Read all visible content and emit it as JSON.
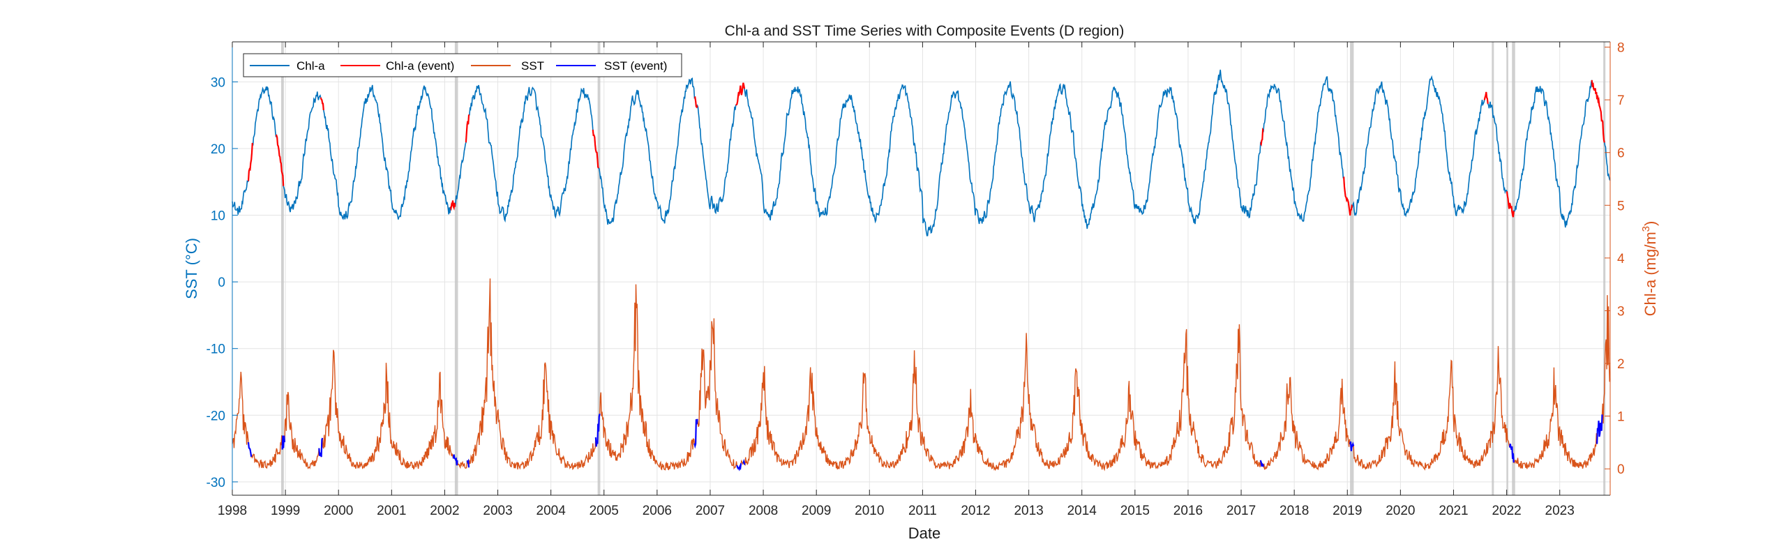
{
  "chart_data": {
    "type": "line",
    "title": "Chl-a and SST Time Series with Composite Events (D region)",
    "xlabel": "Date",
    "ylabel_left": "SST (°C)",
    "ylabel_right_main": "Chl-a (mg/m",
    "ylabel_right_sup": "3",
    "ylabel_right_close": ")",
    "xlim": [
      1998.0,
      2023.95
    ],
    "ylim_left": [
      -32,
      36
    ],
    "ylim_right": [
      -0.5,
      8.1
    ],
    "x_ticks": [
      1998,
      1999,
      2000,
      2001,
      2002,
      2003,
      2004,
      2005,
      2006,
      2007,
      2008,
      2009,
      2010,
      2011,
      2012,
      2013,
      2014,
      2015,
      2016,
      2017,
      2018,
      2019,
      2020,
      2021,
      2022,
      2023
    ],
    "x_tick_labels": [
      "1998",
      "1999",
      "2000",
      "2001",
      "2002",
      "2003",
      "2004",
      "2005",
      "2006",
      "2007",
      "2008",
      "2009",
      "2010",
      "2011",
      "2012",
      "2013",
      "2014",
      "2015",
      "2016",
      "2017",
      "2018",
      "2019",
      "2020",
      "2021",
      "2022",
      "2023"
    ],
    "y_ticks_left": [
      -30,
      -20,
      -10,
      0,
      10,
      20,
      30
    ],
    "y_tick_labels_left": [
      "-30",
      "-20",
      "-10",
      "0",
      "10",
      "20",
      "30"
    ],
    "y_ticks_right": [
      0,
      1,
      2,
      3,
      4,
      5,
      6,
      7,
      8
    ],
    "y_tick_labels_right": [
      "0",
      "1",
      "2",
      "3",
      "4",
      "5",
      "6",
      "7",
      "8"
    ],
    "grid": true,
    "legend_position": "top-left",
    "legend": [
      {
        "label": "Chl-a",
        "color": "#0072BD"
      },
      {
        "label": "Chl-a (event)",
        "color": "#FF0000"
      },
      {
        "label": "SST",
        "color": "#D95319"
      },
      {
        "label": "SST (event)",
        "color": "#0000FF"
      }
    ],
    "colors": {
      "sst_line": "#0072BD",
      "chl_line": "#D95319",
      "event_top": "#FF0000",
      "event_bottom": "#0000FF",
      "event_band": "#c8c8c8",
      "axis_left": "#0072BD",
      "axis_right": "#D95319"
    },
    "series_note": "Top trace plotted on left axis (SST, deg C), bottom trace on right axis (Chl-a, mg/m3); legend labels reproduced as printed.",
    "sst_seasonal": {
      "peak_day_of_year": 225,
      "annual_max": [
        28.7,
        28.0,
        28.7,
        28.2,
        28.8,
        28.7,
        28.3,
        27.9,
        29.3,
        29.0,
        29.5,
        28.0,
        29.0,
        28.4,
        29.4,
        29.0,
        28.6,
        29.0,
        30.7,
        30.0,
        29.3,
        29.2,
        29.9,
        27.5,
        29.1,
        29.3
      ],
      "annual_min": [
        10.5,
        11.0,
        9.7,
        10.2,
        10.9,
        10.0,
        10.2,
        9.2,
        9.5,
        11.0,
        10.0,
        10.0,
        9.9,
        7.3,
        9.2,
        10.0,
        8.9,
        10.5,
        9.3,
        10.5,
        9.5,
        10.5,
        10.4,
        10.3,
        11.0,
        9.2
      ]
    },
    "chl_bloom_peaks": [
      {
        "x": 1998.15,
        "v": 1.6
      },
      {
        "x": 1999.05,
        "v": 1.3
      },
      {
        "x": 1999.9,
        "v": 2.0
      },
      {
        "x": 2000.9,
        "v": 1.6
      },
      {
        "x": 2001.9,
        "v": 1.5
      },
      {
        "x": 2002.85,
        "v": 3.0
      },
      {
        "x": 2003.9,
        "v": 1.85
      },
      {
        "x": 2004.95,
        "v": 1.25
      },
      {
        "x": 2005.6,
        "v": 2.8
      },
      {
        "x": 2006.85,
        "v": 1.5
      },
      {
        "x": 2007.05,
        "v": 2.25
      },
      {
        "x": 2008.0,
        "v": 1.7
      },
      {
        "x": 2008.9,
        "v": 1.85
      },
      {
        "x": 2009.9,
        "v": 1.6
      },
      {
        "x": 2010.85,
        "v": 1.8
      },
      {
        "x": 2011.9,
        "v": 1.2
      },
      {
        "x": 2012.95,
        "v": 2.1
      },
      {
        "x": 2013.9,
        "v": 1.8
      },
      {
        "x": 2014.9,
        "v": 1.45
      },
      {
        "x": 2015.95,
        "v": 2.3
      },
      {
        "x": 2016.95,
        "v": 2.3
      },
      {
        "x": 2017.9,
        "v": 1.7
      },
      {
        "x": 2018.9,
        "v": 1.5
      },
      {
        "x": 2019.9,
        "v": 1.6
      },
      {
        "x": 2020.95,
        "v": 1.75
      },
      {
        "x": 2021.85,
        "v": 1.95
      },
      {
        "x": 2022.9,
        "v": 1.65
      },
      {
        "x": 2023.9,
        "v": 2.7
      }
    ],
    "event_bands": [
      {
        "start": 1998.92,
        "end": 1998.97
      },
      {
        "start": 2002.19,
        "end": 2002.25
      },
      {
        "start": 2004.88,
        "end": 2004.93
      },
      {
        "start": 2019.05,
        "end": 2019.12
      },
      {
        "start": 2021.72,
        "end": 2021.76
      },
      {
        "start": 2022.0,
        "end": 2022.03
      },
      {
        "start": 2022.1,
        "end": 2022.16
      },
      {
        "start": 2023.82,
        "end": 2023.86
      }
    ],
    "sst_event_segments": [
      {
        "start": 1998.3,
        "end": 1998.38
      },
      {
        "start": 1998.82,
        "end": 1998.97
      },
      {
        "start": 1999.66,
        "end": 1999.72
      },
      {
        "start": 2002.1,
        "end": 2002.2
      },
      {
        "start": 2002.4,
        "end": 2002.47
      },
      {
        "start": 2004.78,
        "end": 2004.9
      },
      {
        "start": 2006.7,
        "end": 2006.76
      },
      {
        "start": 2007.48,
        "end": 2007.65
      },
      {
        "start": 2017.36,
        "end": 2017.42
      },
      {
        "start": 2018.92,
        "end": 2019.1
      },
      {
        "start": 2021.58,
        "end": 2021.65
      },
      {
        "start": 2022.0,
        "end": 2022.14
      },
      {
        "start": 2023.6,
        "end": 2023.85
      }
    ],
    "chl_event_segments": [
      {
        "start": 1998.3,
        "end": 1998.36
      },
      {
        "start": 1998.93,
        "end": 1998.99
      },
      {
        "start": 1999.63,
        "end": 1999.7
      },
      {
        "start": 2002.16,
        "end": 2002.24
      },
      {
        "start": 2002.42,
        "end": 2002.46
      },
      {
        "start": 2004.84,
        "end": 2004.93
      },
      {
        "start": 2006.7,
        "end": 2006.76
      },
      {
        "start": 2007.5,
        "end": 2007.58
      },
      {
        "start": 2007.62,
        "end": 2007.66
      },
      {
        "start": 2017.36,
        "end": 2017.42
      },
      {
        "start": 2019.05,
        "end": 2019.12
      },
      {
        "start": 2022.05,
        "end": 2022.14
      },
      {
        "start": 2023.7,
        "end": 2023.8
      }
    ]
  }
}
